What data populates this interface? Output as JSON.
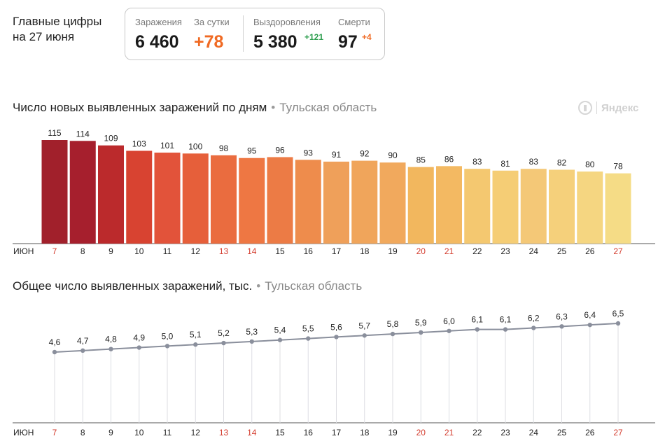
{
  "header": {
    "title_line1": "Главные цифры",
    "title_line2": "на 27 июня"
  },
  "stats": {
    "infections_label": "Заражения",
    "infections_value": "6 460",
    "day_label": "За сутки",
    "day_value": "+78",
    "recovered_label": "Выздоровления",
    "recovered_value": "5 380",
    "recovered_delta": "+121",
    "deaths_label": "Смерти",
    "deaths_value": "97",
    "deaths_delta": "+4"
  },
  "brand": {
    "name": "Яндекс"
  },
  "chart_data": [
    {
      "type": "bar",
      "title": "Число новых выявленных заражений по дням",
      "region": "Тульская область",
      "month_label": "ИЮН",
      "categories": [
        "7",
        "8",
        "9",
        "10",
        "11",
        "12",
        "13",
        "14",
        "15",
        "16",
        "17",
        "18",
        "19",
        "20",
        "21",
        "22",
        "23",
        "24",
        "25",
        "26",
        "27"
      ],
      "weekend_days": [
        "7",
        "13",
        "14",
        "20",
        "21",
        "27"
      ],
      "values": [
        115,
        114,
        109,
        103,
        101,
        100,
        98,
        95,
        96,
        93,
        91,
        92,
        90,
        85,
        86,
        83,
        81,
        83,
        82,
        80,
        78
      ],
      "value_labels": [
        "115",
        "114",
        "109",
        "103",
        "101",
        "100",
        "98",
        "95",
        "96",
        "93",
        "91",
        "92",
        "90",
        "85",
        "86",
        "83",
        "81",
        "83",
        "82",
        "80",
        "78"
      ],
      "ylim": [
        0,
        118
      ],
      "colors": [
        "#a1202b",
        "#a61f2d",
        "#bb2a2c",
        "#d84331",
        "#e2533a",
        "#e65f3a",
        "#ea6c3f",
        "#ee7743",
        "#ec7b45",
        "#ee8c4c",
        "#efa05a",
        "#f0a55b",
        "#f1a95d",
        "#f2b75e",
        "#f3b962",
        "#f4c870",
        "#f5cd75",
        "#f4c877",
        "#f5d07b",
        "#f5d681",
        "#f5dc86"
      ],
      "weekend_color": "#d33a2c"
    },
    {
      "type": "line",
      "title": "Общее число выявленных заражений, тыс.",
      "region": "Тульская область",
      "month_label": "ИЮН",
      "categories": [
        "7",
        "8",
        "9",
        "10",
        "11",
        "12",
        "13",
        "14",
        "15",
        "16",
        "17",
        "18",
        "19",
        "20",
        "21",
        "22",
        "23",
        "24",
        "25",
        "26",
        "27"
      ],
      "weekend_days": [
        "7",
        "13",
        "14",
        "20",
        "21",
        "27"
      ],
      "values": [
        4.6,
        4.7,
        4.8,
        4.9,
        5.0,
        5.1,
        5.2,
        5.3,
        5.4,
        5.5,
        5.6,
        5.7,
        5.8,
        5.9,
        6.0,
        6.1,
        6.1,
        6.2,
        6.3,
        6.4,
        6.5
      ],
      "value_labels": [
        "4,6",
        "4,7",
        "4,8",
        "4,9",
        "5,0",
        "5,1",
        "5,2",
        "5,3",
        "5,4",
        "5,5",
        "5,6",
        "5,7",
        "5,8",
        "5,9",
        "6,0",
        "6,1",
        "6,1",
        "6,2",
        "6,3",
        "6,4",
        "6,5"
      ],
      "ylim": [
        0,
        6.5
      ],
      "line_color": "#8a8f9c",
      "weekend_color": "#d33a2c"
    }
  ]
}
